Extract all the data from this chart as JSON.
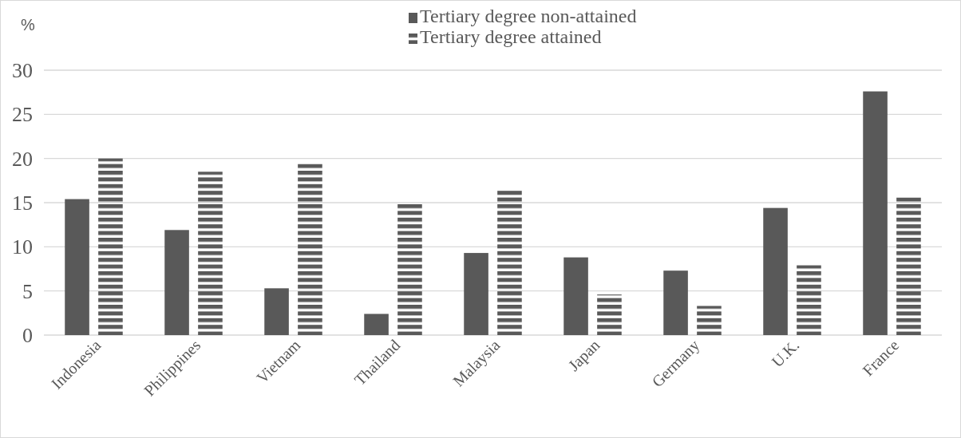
{
  "chart_data": {
    "type": "bar",
    "ylabel": "%",
    "categories": [
      "Indonesia",
      "Philippines",
      "Vietnam",
      "Thailand",
      "Malaysia",
      "Japan",
      "Germany",
      "U.K.",
      "France"
    ],
    "series": [
      {
        "name": "Tertiary degree non-attained",
        "color": "#595959",
        "values": [
          15.4,
          11.9,
          5.3,
          2.4,
          9.3,
          8.8,
          7.3,
          14.4,
          27.6
        ]
      },
      {
        "name": "Tertiary degree attained",
        "color": "#595959",
        "values": [
          20.0,
          18.5,
          19.4,
          14.9,
          16.4,
          4.6,
          3.3,
          7.9,
          15.6
        ]
      }
    ],
    "ylim": [
      0,
      30
    ],
    "yticks": [
      0,
      5,
      10,
      15,
      20,
      25,
      30
    ],
    "grid": "y",
    "legend": "top"
  }
}
